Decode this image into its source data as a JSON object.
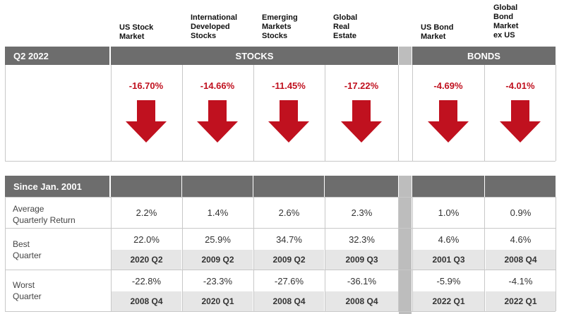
{
  "columns": [
    {
      "label": "US Stock\nMarket"
    },
    {
      "label": "International\nDeveloped\nStocks"
    },
    {
      "label": "Emerging\nMarkets\nStocks"
    },
    {
      "label": "Global\nReal\nEstate"
    },
    {
      "label": "US Bond\nMarket"
    },
    {
      "label": "Global\nBond\nMarket\nex US"
    }
  ],
  "header": {
    "period": "Q2 2022",
    "stocks": "STOCKS",
    "bonds": "BONDS"
  },
  "returns": [
    "-16.70%",
    "-14.66%",
    "-11.45%",
    "-17.22%",
    "-4.69%",
    "-4.01%"
  ],
  "arrow_icon": "down-arrow-icon",
  "accent_color": "#c0111f",
  "since": {
    "title": "Since Jan. 2001",
    "avg_label": "Average\nQuarterly Return",
    "avg": [
      "2.2%",
      "1.4%",
      "2.6%",
      "2.3%",
      "1.0%",
      "0.9%"
    ],
    "best_label": "Best\nQuarter",
    "best": [
      "22.0%",
      "25.9%",
      "34.7%",
      "32.3%",
      "4.6%",
      "4.6%"
    ],
    "best_q": [
      "2020 Q2",
      "2009 Q2",
      "2009 Q2",
      "2009 Q3",
      "2001 Q3",
      "2008 Q4"
    ],
    "worst_label": "Worst\nQuarter",
    "worst": [
      "-22.8%",
      "-23.3%",
      "-27.6%",
      "-36.1%",
      "-5.9%",
      "-4.1%"
    ],
    "worst_q": [
      "2008 Q4",
      "2020 Q1",
      "2008 Q4",
      "2008 Q4",
      "2022 Q1",
      "2022 Q1"
    ]
  }
}
